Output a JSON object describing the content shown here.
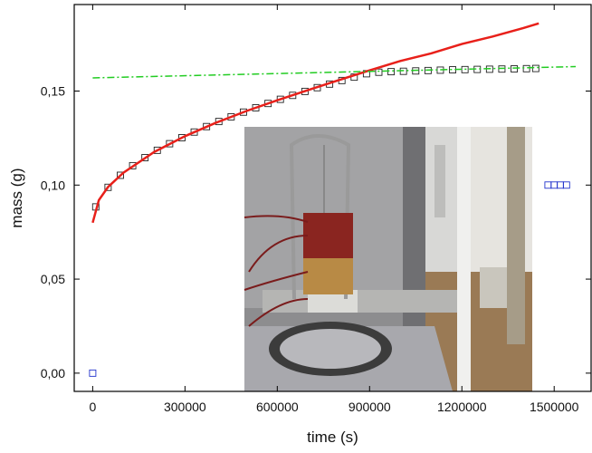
{
  "chart_data": {
    "type": "line",
    "xlabel": "time (s)",
    "ylabel": "mass (g)",
    "xlim": [
      -60000,
      1620000
    ],
    "ylim": [
      -0.0097,
      0.196
    ],
    "xticks": [
      0,
      300000,
      600000,
      900000,
      1200000,
      1500000
    ],
    "yticks": [
      {
        "value": 0,
        "label": "0,00"
      },
      {
        "value": 0.05,
        "label": "0,05"
      },
      {
        "value": 0.1,
        "label": "0,10"
      },
      {
        "value": 0.15,
        "label": "0,15"
      }
    ],
    "series": [
      {
        "color": "#222222",
        "style": "square",
        "x": [
          10000,
          50000,
          90000,
          130000,
          170000,
          210000,
          250000,
          290000,
          330000,
          370000,
          410000,
          450000,
          490000,
          530000,
          570000,
          610000,
          650000,
          690000,
          730000,
          770000,
          810000,
          850000,
          890000,
          930000,
          970000,
          1010000,
          1050000,
          1090000,
          1130000,
          1170000,
          1210000,
          1250000,
          1290000,
          1330000,
          1370000,
          1410000,
          1440000
        ],
        "values": [
          0.0884,
          0.0988,
          0.1052,
          0.1103,
          0.1146,
          0.1185,
          0.122,
          0.1252,
          0.1282,
          0.1311,
          0.1338,
          0.1363,
          0.1388,
          0.1411,
          0.1434,
          0.1456,
          0.1477,
          0.1498,
          0.1518,
          0.1537,
          0.1556,
          0.1574,
          0.1592,
          0.16,
          0.1603,
          0.1605,
          0.1607,
          0.1609,
          0.1611,
          0.1613,
          0.1614,
          0.1615,
          0.1616,
          0.1617,
          0.1618,
          0.1619,
          0.162
        ]
      },
      {
        "color": "#e8201a",
        "style": "solid",
        "x": [
          0,
          20000,
          50000,
          100000,
          200000,
          300000,
          400000,
          500000,
          600000,
          700000,
          800000,
          900000,
          1000000,
          1100000,
          1200000,
          1300000,
          1400000,
          1450000
        ],
        "values": [
          0.08,
          0.092,
          0.099,
          0.1066,
          0.1176,
          0.126,
          0.1331,
          0.1394,
          0.1451,
          0.1505,
          0.1558,
          0.161,
          0.166,
          0.17,
          0.175,
          0.179,
          0.1835,
          0.186
        ]
      },
      {
        "color": "#22cc22",
        "style": "dash-dot",
        "x": [
          0,
          1570000
        ],
        "values": [
          0.157,
          0.163
        ]
      },
      {
        "color": "#2233cc",
        "style": "square",
        "x": [
          0,
          1480000,
          1500000,
          1520000,
          1540000
        ],
        "values": [
          0,
          0.1,
          0.1,
          0.1,
          0.1
        ]
      }
    ]
  }
}
